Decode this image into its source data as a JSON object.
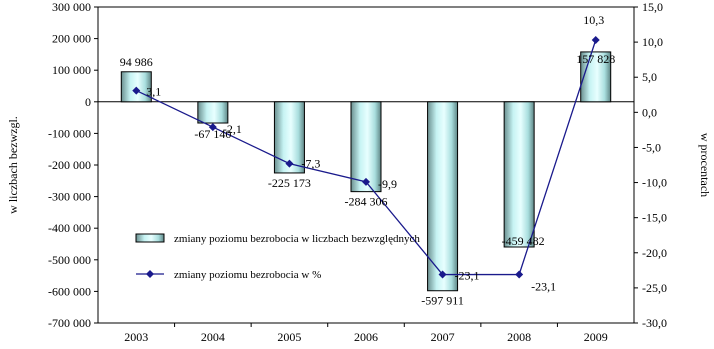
{
  "chart_data": {
    "type": "bar+line",
    "categories": [
      "2003",
      "2004",
      "2005",
      "2006",
      "2007",
      "2008",
      "2009"
    ],
    "series": [
      {
        "name": "zmiany poziomu bezrobocia w liczbach bezwzględnych",
        "kind": "bar",
        "axis": "left",
        "values": [
          94986,
          -67140,
          -225173,
          -284306,
          -597911,
          -459482,
          157828
        ],
        "labels": [
          "94 986",
          "-67 140",
          "-225 173",
          "-284 306",
          "-597 911",
          "-459 482",
          "157 828"
        ],
        "color": "#9fe4e4"
      },
      {
        "name": "zmiany poziomu bezrobocia w %",
        "kind": "line",
        "axis": "right",
        "values": [
          3.1,
          -2.1,
          -7.3,
          -9.9,
          -23.1,
          -23.1,
          10.3
        ],
        "labels": [
          "3,1",
          "-2,1",
          "-7,3",
          "-9,9",
          "-23,1",
          "-23,1",
          "10,3"
        ],
        "color": "#1a1a8c"
      }
    ],
    "y_left": {
      "label": "w liczbach bezwzgl.",
      "ylim": [
        -700000,
        300000
      ],
      "ticks": [
        300000,
        200000,
        100000,
        0,
        -100000,
        -200000,
        -300000,
        -400000,
        -500000,
        -600000,
        -700000
      ],
      "tick_labels": [
        "300 000",
        "200 000",
        "100 000",
        "0",
        "-100 000",
        "-200 000",
        "-300 000",
        "-400 000",
        "-500 000",
        "-600 000",
        "-700 000"
      ]
    },
    "y_right": {
      "label": "w procentach",
      "ylim": [
        -30,
        15
      ],
      "ticks": [
        15,
        10,
        5,
        0,
        -5,
        -10,
        -15,
        -20,
        -25,
        -30
      ],
      "tick_labels": [
        "15,0",
        "10,0",
        "5,0",
        "0,0",
        "-5,0",
        "-10,0",
        "-15,0",
        "-20,0",
        "-25,0",
        "-30,0"
      ]
    },
    "legend": {
      "placement": "bottom-left",
      "entries": [
        "zmiany poziomu bezrobocia w liczbach bezwzględnych",
        "zmiany poziomu bezrobocia w %"
      ]
    },
    "grid": false
  }
}
